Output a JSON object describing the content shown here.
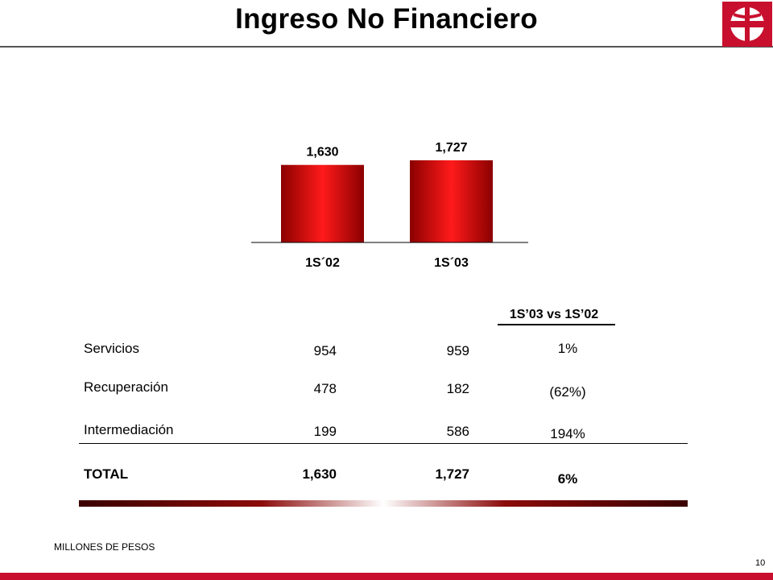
{
  "header": {
    "title": "Ingreso No Financiero"
  },
  "colors": {
    "accent": "#c8102e",
    "bar_dark": "#8b0000",
    "bar_light": "#ff1a1a"
  },
  "logo": {
    "icon": "banorte-logo-icon"
  },
  "chart_data": {
    "type": "bar",
    "categories": [
      "1S´02",
      "1S´03"
    ],
    "values": [
      1630,
      1727
    ],
    "value_labels": [
      "1,630",
      "1,727"
    ],
    "title": "",
    "xlabel": "",
    "ylabel": "",
    "ylim": [
      0,
      1800
    ],
    "grid": false,
    "legend": "none"
  },
  "table": {
    "comparison_header": "1S’03 vs 1S’02",
    "rows": [
      {
        "label": "Servicios",
        "v1": "954",
        "v2": "959",
        "change": "1%"
      },
      {
        "label": "Recuperación",
        "v1": "478",
        "v2": "182",
        "change": "(62%)"
      },
      {
        "label": "Intermediación",
        "v1": "199",
        "v2": "586",
        "change": "194%"
      }
    ],
    "total": {
      "label": "TOTAL",
      "v1": "1,630",
      "v2": "1,727",
      "change": "6%"
    }
  },
  "footer": {
    "units": "MILLONES DE PESOS",
    "page": "10"
  }
}
